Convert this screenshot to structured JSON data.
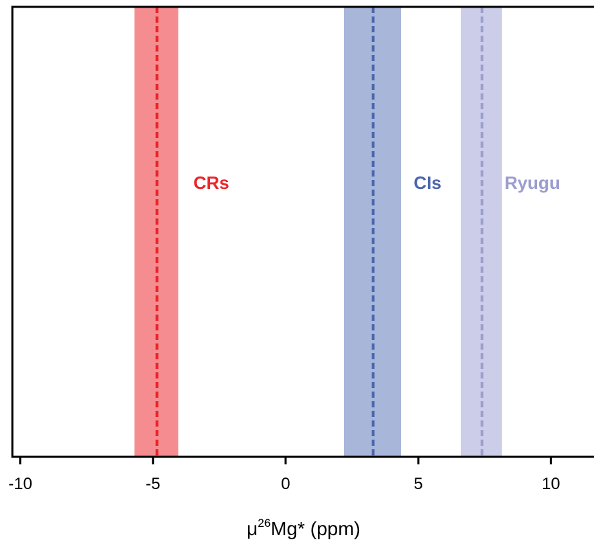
{
  "chart_data": {
    "type": "range-bands",
    "xlabel": {
      "prefix": "μ",
      "superscript": "26",
      "suffix": "Mg* (ppm)"
    },
    "xlim": [
      -10.3,
      11.7
    ],
    "xticks": [
      -10,
      -5,
      0,
      5,
      10
    ],
    "xtick_labels": [
      "-10",
      "-5",
      "0",
      "5",
      "10"
    ],
    "grid": false,
    "legend": "none",
    "series": [
      {
        "name": "CRs",
        "mean": -4.85,
        "low": -5.7,
        "high": -4.05,
        "color": "#e8262b",
        "band_color": "#f58d90",
        "label_at_x": -2.8
      },
      {
        "name": "CIs",
        "mean": 3.3,
        "low": 2.2,
        "high": 4.35,
        "color": "#4a65ad",
        "band_color": "#a7b6d9",
        "label_at_x": 5.35
      },
      {
        "name": "Ryugu",
        "mean": 7.4,
        "low": 6.6,
        "high": 8.15,
        "color": "#9b9dd0",
        "band_color": "#cccde8",
        "label_at_x": 9.3
      }
    ]
  }
}
